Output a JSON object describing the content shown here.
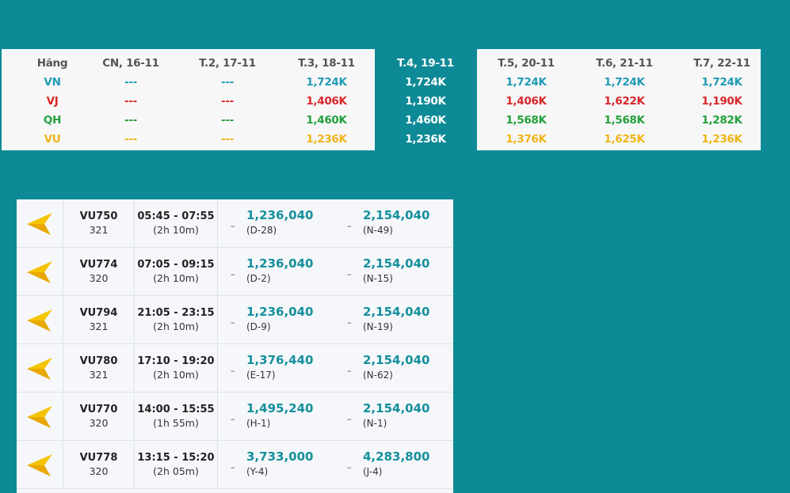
{
  "calendar": {
    "airline_header": "Hãng",
    "airlines": [
      "VN",
      "VJ",
      "QH",
      "VU"
    ],
    "days": [
      {
        "label": "CN, 16-11",
        "prices": [
          "---",
          "---",
          "---",
          "---"
        ]
      },
      {
        "label": "T.2, 17-11",
        "prices": [
          "---",
          "---",
          "---",
          "---"
        ]
      },
      {
        "label": "T.3, 18-11",
        "prices": [
          "1,724K",
          "1,406K",
          "1,460K",
          "1,236K"
        ]
      },
      {
        "label": "T.4, 19-11",
        "prices": [
          "1,724K",
          "1,190K",
          "1,460K",
          "1,236K"
        ],
        "selected": true
      },
      {
        "label": "T.5, 20-11",
        "prices": [
          "1,724K",
          "1,406K",
          "1,568K",
          "1,376K"
        ]
      },
      {
        "label": "T.6, 21-11",
        "prices": [
          "1,724K",
          "1,622K",
          "1,568K",
          "1,625K"
        ]
      },
      {
        "label": "T.7, 22-11",
        "prices": [
          "1,724K",
          "1,190K",
          "1,282K",
          "1,236K"
        ]
      }
    ],
    "airline_colors": {
      "VN": "#1f9bb5",
      "VJ": "#d9262a",
      "QH": "#23a03c",
      "VU": "#f0b416"
    }
  },
  "flights": [
    {
      "code": "VU750",
      "aircraft": "321",
      "time": "05:45 - 07:55",
      "duration": "(2h 10m)",
      "fare1": "1,236,040",
      "class1": "(D-28)",
      "fare2": "2,154,040",
      "class2": "(N-49)",
      "logo_icon": "vietravel-airlines-logo-icon"
    },
    {
      "code": "VU774",
      "aircraft": "320",
      "time": "07:05 - 09:15",
      "duration": "(2h 10m)",
      "fare1": "1,236,040",
      "class1": "(D-2)",
      "fare2": "2,154,040",
      "class2": "(N-15)",
      "logo_icon": "vietravel-airlines-logo-icon"
    },
    {
      "code": "VU794",
      "aircraft": "321",
      "time": "21:05 - 23:15",
      "duration": "(2h 10m)",
      "fare1": "1,236,040",
      "class1": "(D-9)",
      "fare2": "2,154,040",
      "class2": "(N-19)",
      "logo_icon": "vietravel-airlines-logo-icon"
    },
    {
      "code": "VU780",
      "aircraft": "321",
      "time": "17:10 - 19:20",
      "duration": "(2h 10m)",
      "fare1": "1,376,440",
      "class1": "(E-17)",
      "fare2": "2,154,040",
      "class2": "(N-62)",
      "logo_icon": "vietravel-airlines-logo-icon"
    },
    {
      "code": "VU770",
      "aircraft": "320",
      "time": "14:00 - 15:55",
      "duration": "(1h 55m)",
      "fare1": "1,495,240",
      "class1": "(H-1)",
      "fare2": "2,154,040",
      "class2": "(N-1)",
      "logo_icon": "vietravel-airlines-logo-icon"
    },
    {
      "code": "VU778",
      "aircraft": "320",
      "time": "13:15 - 15:20",
      "duration": "(2h 05m)",
      "fare1": "3,733,000",
      "class1": "(Y-4)",
      "fare2": "4,283,800",
      "class2": "(J-4)",
      "logo_icon": "vietravel-airlines-logo-icon"
    }
  ],
  "fare_separator": "–",
  "colors": {
    "background": "#0e8a96",
    "fare": "#15909c",
    "logo_yellow": "#f5c400"
  }
}
